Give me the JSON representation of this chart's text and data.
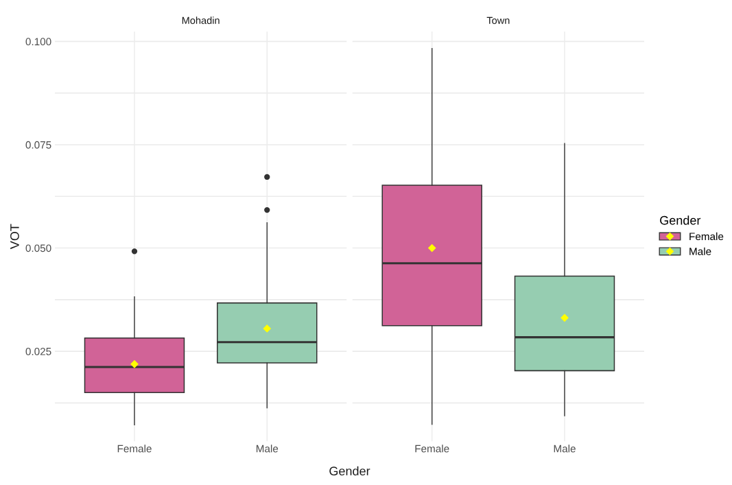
{
  "chart_data": [
    {
      "type": "box",
      "title": "Mohadin",
      "xlabel": "Gender",
      "ylabel": "VOT",
      "categories": [
        "Female",
        "Male"
      ],
      "ylim": [
        0.0032,
        0.1024
      ],
      "yticks": [
        {
          "value": 0.0125,
          "label": null
        },
        {
          "value": 0.025,
          "label": "0.025"
        },
        {
          "value": 0.0375,
          "label": null
        },
        {
          "value": 0.05,
          "label": "0.050"
        },
        {
          "value": 0.0625,
          "label": null
        },
        {
          "value": 0.075,
          "label": "0.075"
        },
        {
          "value": 0.0875,
          "label": null
        },
        {
          "value": 0.1,
          "label": "0.100"
        }
      ],
      "grid": true,
      "series": [
        {
          "color": "#d16397",
          "boxes": [
            {
              "low": 0.0072,
              "q1": 0.015,
              "median": 0.0212,
              "q3": 0.0282,
              "high": 0.0382,
              "mean": 0.0219,
              "outliers": [
                0.0492
              ]
            },
            null
          ]
        },
        {
          "color": "#96cdb1",
          "boxes": [
            null,
            {
              "low": 0.0113,
              "q1": 0.0222,
              "median": 0.0272,
              "q3": 0.0367,
              "high": 0.0561,
              "mean": 0.0305,
              "outliers": [
                0.0592,
                0.0672
              ]
            }
          ]
        }
      ]
    },
    {
      "type": "box",
      "title": "Town",
      "categories": [
        "Female",
        "Male"
      ],
      "ylim": [
        0.0032,
        0.1024
      ],
      "yticks": [
        {
          "value": 0.0125,
          "label": null
        },
        {
          "value": 0.025,
          "label": null
        },
        {
          "value": 0.0375,
          "label": null
        },
        {
          "value": 0.05,
          "label": null
        },
        {
          "value": 0.0625,
          "label": null
        },
        {
          "value": 0.075,
          "label": null
        },
        {
          "value": 0.0875,
          "label": null
        },
        {
          "value": 0.1,
          "label": null
        }
      ],
      "grid": true,
      "tick_labels": "x",
      "legend": "right",
      "legend_title": "Gender",
      "series": [
        {
          "name": "Female",
          "color": "#d16397",
          "boxes": [
            {
              "low": 0.0073,
              "q1": 0.0312,
              "median": 0.0463,
              "q3": 0.0652,
              "high": 0.0983,
              "mean": 0.05
            },
            null
          ]
        },
        {
          "name": "Male",
          "color": "#96cdb1",
          "boxes": [
            null,
            {
              "low": 0.0094,
              "q1": 0.0203,
              "median": 0.0284,
              "q3": 0.0432,
              "high": 0.0753,
              "mean": 0.0331
            }
          ]
        }
      ]
    }
  ]
}
